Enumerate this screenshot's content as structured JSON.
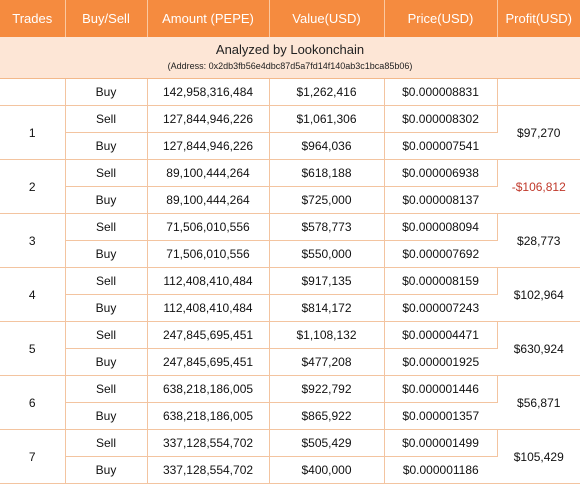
{
  "columns": [
    "Trades",
    "Buy/Sell",
    "Amount (PEPE)",
    "Value(USD)",
    "Price(USD)",
    "Profit(USD)"
  ],
  "banner": {
    "title": "Analyzed by Lookonchain",
    "address": "(Address: 0x2db3fb56e4dbc87d5a7fd14f140ab3c1bca85b06)"
  },
  "opening_row": {
    "side": "Buy",
    "amount": "142,958,316,484",
    "value": "$1,262,416",
    "price": "$0.000008831"
  },
  "trades": [
    {
      "id": "1",
      "profit": "$97,270",
      "negative": false,
      "rows": [
        {
          "side": "Sell",
          "amount": "127,844,946,226",
          "value": "$1,061,306",
          "price": "$0.000008302"
        },
        {
          "side": "Buy",
          "amount": "127,844,946,226",
          "value": "$964,036",
          "price": "$0.000007541"
        }
      ]
    },
    {
      "id": "2",
      "profit": "-$106,812",
      "negative": true,
      "rows": [
        {
          "side": "Sell",
          "amount": "89,100,444,264",
          "value": "$618,188",
          "price": "$0.000006938"
        },
        {
          "side": "Buy",
          "amount": "89,100,444,264",
          "value": "$725,000",
          "price": "$0.000008137"
        }
      ]
    },
    {
      "id": "3",
      "profit": "$28,773",
      "negative": false,
      "rows": [
        {
          "side": "Sell",
          "amount": "71,506,010,556",
          "value": "$578,773",
          "price": "$0.000008094"
        },
        {
          "side": "Buy",
          "amount": "71,506,010,556",
          "value": "$550,000",
          "price": "$0.000007692"
        }
      ]
    },
    {
      "id": "4",
      "profit": "$102,964",
      "negative": false,
      "rows": [
        {
          "side": "Sell",
          "amount": "112,408,410,484",
          "value": "$917,135",
          "price": "$0.000008159"
        },
        {
          "side": "Buy",
          "amount": "112,408,410,484",
          "value": "$814,172",
          "price": "$0.000007243"
        }
      ]
    },
    {
      "id": "5",
      "profit": "$630,924",
      "negative": false,
      "rows": [
        {
          "side": "Sell",
          "amount": "247,845,695,451",
          "value": "$1,108,132",
          "price": "$0.000004471"
        },
        {
          "side": "Buy",
          "amount": "247,845,695,451",
          "value": "$477,208",
          "price": "$0.000001925"
        }
      ]
    },
    {
      "id": "6",
      "profit": "$56,871",
      "negative": false,
      "rows": [
        {
          "side": "Sell",
          "amount": "638,218,186,005",
          "value": "$922,792",
          "price": "$0.000001446"
        },
        {
          "side": "Buy",
          "amount": "638,218,186,005",
          "value": "$865,922",
          "price": "$0.000001357"
        }
      ]
    },
    {
      "id": "7",
      "profit": "$105,429",
      "negative": false,
      "rows": [
        {
          "side": "Sell",
          "amount": "337,128,554,702",
          "value": "$505,429",
          "price": "$0.000001499"
        },
        {
          "side": "Buy",
          "amount": "337,128,554,702",
          "value": "$400,000",
          "price": "$0.000001186"
        }
      ]
    }
  ],
  "colors": {
    "header_bg": "#f58b3f",
    "banner_bg": "#fde6d6",
    "border": "#f3c4a0",
    "negative": "#c0392b"
  }
}
